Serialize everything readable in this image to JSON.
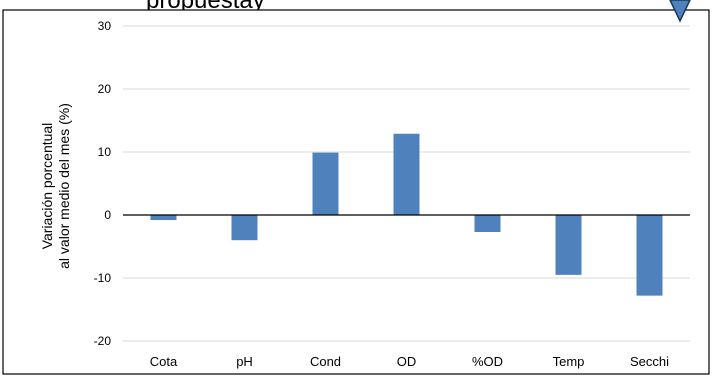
{
  "chart_data": {
    "type": "bar",
    "title": "",
    "xlabel": "",
    "ylabel": [
      "Variación porcentual",
      "al valor medio del mes (%)"
    ],
    "categories": [
      "Cota",
      "pH",
      "Cond",
      "OD",
      "%OD",
      "Temp",
      "Secchi"
    ],
    "values": [
      -0.8,
      -4.0,
      9.9,
      12.9,
      -2.7,
      -9.5,
      -12.8
    ],
    "ylim": [
      -20,
      30
    ],
    "yticks": [
      -20,
      -10,
      0,
      10,
      20,
      30
    ],
    "grid": true,
    "legend": "none",
    "colors": {
      "bar": "#4f81bd",
      "grid": "#d9d9d9",
      "axis": "#000000",
      "marker": "#4f81bd"
    }
  },
  "top_banner_fragment": "propuestay"
}
